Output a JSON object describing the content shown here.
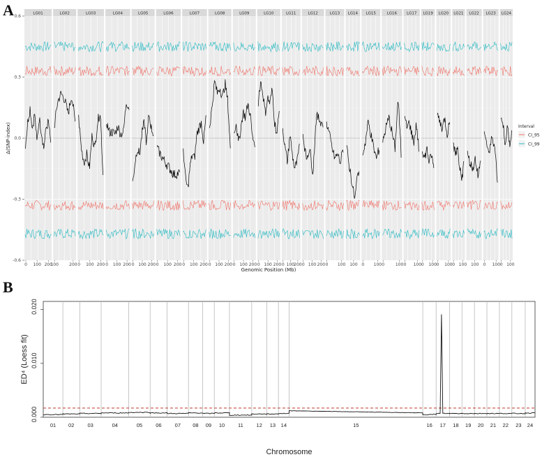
{
  "figure": {
    "panel_a_label": "A",
    "panel_b_label": "B"
  },
  "chart_data": [
    {
      "type": "line",
      "panel": "A",
      "title": "",
      "xlabel": "Genomic Position (Mb)",
      "ylabel": "Δ(SNP-index)",
      "ylim": [
        -0.6,
        0.6
      ],
      "yticks": [
        "0.6",
        "0.3",
        "0.0",
        "-0.3",
        "-0.6"
      ],
      "grid": true,
      "legend": {
        "title": "Interval",
        "placement": "right",
        "entries": [
          {
            "name": "CI_95",
            "color": "#f07167"
          },
          {
            "name": "CI_99",
            "color": "#26b9c2"
          }
        ]
      },
      "facets": [
        {
          "label": "LG01",
          "xticks": [
            "0",
            "100",
            "200"
          ],
          "delta": [
            -0.03,
            0.08,
            0.15,
            0.05,
            0.12,
            -0.02,
            0.1,
            0.03,
            -0.05,
            0.05,
            0.08,
            -0.02
          ]
        },
        {
          "label": "LG02",
          "xticks": [
            "100",
            "200"
          ],
          "delta": [
            0.05,
            0.18,
            0.22,
            0.19,
            0.12,
            0.21,
            0.08
          ]
        },
        {
          "label": "LG03",
          "xticks": [
            "0",
            "100",
            "200"
          ],
          "delta": [
            0.1,
            -0.05,
            -0.12,
            -0.08,
            -0.15,
            0.02,
            -0.05,
            0.08,
            0.13,
            -0.18
          ]
        },
        {
          "label": "LG04",
          "xticks": [
            "0",
            "100",
            "200"
          ],
          "delta": [
            0.08,
            0.03,
            0.03,
            0.02,
            0.06,
            0.02,
            0.03,
            0.18,
            0.15
          ]
        },
        {
          "label": "LG05",
          "xticks": [
            "0",
            "100",
            "200"
          ],
          "delta": [
            -0.22,
            -0.12,
            -0.05,
            -0.08,
            0.02,
            0.08,
            -0.03,
            0.12,
            0.05,
            0.02
          ]
        },
        {
          "label": "LG06",
          "xticks": [
            "0",
            "100",
            "200"
          ],
          "delta": [
            -0.05,
            -0.1,
            -0.14,
            -0.18,
            -0.17
          ]
        },
        {
          "label": "LG07",
          "xticks": [
            "0",
            "100",
            "200"
          ],
          "delta": [
            -0.05,
            -0.2,
            -0.25,
            -0.14,
            -0.08,
            -0.1,
            0.02,
            0.05,
            0.08,
            -0.02,
            0.1
          ]
        },
        {
          "label": "LG08",
          "xticks": [
            "0",
            "100",
            "200"
          ],
          "delta": [
            0.05,
            0.15,
            0.28,
            0.22,
            0.25,
            0.2,
            0.27,
            0.18,
            -0.05
          ]
        },
        {
          "label": "LG09",
          "xticks": [
            "0",
            "100",
            "200"
          ],
          "delta": [
            0.02,
            0.08,
            -0.03,
            0.05,
            0.13,
            0.1,
            0.17,
            0.12,
            0.0,
            -0.02
          ]
        },
        {
          "label": "LG10",
          "xticks": [
            "0",
            "100",
            "200"
          ],
          "delta": [
            0.18,
            0.28,
            0.22,
            0.12,
            0.2,
            0.17,
            0.24,
            0.08,
            0.02,
            0.13
          ]
        },
        {
          "label": "LG11",
          "xticks": [
            "0",
            "100",
            "200"
          ],
          "delta": [
            0.05,
            -0.05,
            -0.12,
            0.02,
            -0.08,
            -0.15,
            -0.12,
            -0.05
          ]
        },
        {
          "label": "LG12",
          "xticks": [
            "0",
            "100",
            "200"
          ],
          "delta": [
            0.02,
            -0.1,
            -0.05,
            -0.17,
            0.11,
            0.09,
            0.07
          ]
        },
        {
          "label": "LG13",
          "xticks": [
            "0",
            "100"
          ],
          "delta": [
            0.08,
            0.02,
            -0.05,
            -0.1,
            -0.08,
            -0.12,
            -0.05
          ]
        },
        {
          "label": "LG14",
          "xticks": [
            "100"
          ],
          "delta": [
            -0.05,
            -0.12,
            -0.18,
            -0.25,
            -0.3,
            -0.2,
            -0.15
          ]
        },
        {
          "label": "LG15",
          "xticks": [
            "0",
            "100"
          ],
          "delta": [
            -0.08,
            -0.02,
            0.08,
            0.02,
            -0.05,
            -0.1,
            -0.05
          ]
        },
        {
          "label": "LG16",
          "xticks": [
            "0",
            "100"
          ],
          "delta": [
            -0.02,
            0.05,
            0.1,
            0.03,
            -0.05,
            0.2,
            -0.08
          ]
        },
        {
          "label": "LG17",
          "xticks": [
            "0",
            "100"
          ],
          "delta": [
            0.1,
            0.05,
            0.08,
            0.02,
            -0.02,
            0.07,
            -0.05
          ]
        },
        {
          "label": "LG19",
          "xticks": [
            "0",
            "100"
          ],
          "delta": [
            -0.05,
            -0.1,
            -0.05,
            -0.12,
            -0.08,
            -0.15
          ]
        },
        {
          "label": "LG20",
          "xticks": [
            "0",
            "100"
          ],
          "delta": [
            0.12,
            0.08,
            0.05,
            0.1,
            0.02,
            0.08
          ]
        },
        {
          "label": "LG21",
          "xticks": [
            "0",
            "100"
          ],
          "delta": [
            -0.02,
            -0.08,
            -0.05,
            -0.15,
            -0.2,
            -0.12
          ]
        },
        {
          "label": "LG22",
          "xticks": [
            "100"
          ],
          "delta": [
            -0.08,
            -0.12,
            -0.15,
            -0.1,
            -0.18,
            -0.12
          ]
        },
        {
          "label": "LG23",
          "xticks": [
            "0",
            "100"
          ],
          "delta": [
            0.05,
            -0.03,
            -0.08,
            0.02,
            -0.05,
            -0.2
          ]
        },
        {
          "label": "LG24",
          "xticks": [
            "0",
            "100"
          ],
          "delta": [
            0.1,
            0.06,
            -0.02,
            0.05,
            -0.03,
            0.02
          ]
        }
      ],
      "threshold_levels": {
        "CI_95": [
          0.33,
          -0.33
        ],
        "CI_99": [
          0.45,
          -0.47
        ]
      }
    },
    {
      "type": "line",
      "panel": "B",
      "title": "",
      "xlabel": "Chromosome",
      "ylabel": "ED⁴ (Loess fit)",
      "ylim": [
        0,
        0.0215
      ],
      "yticks": [
        "0.000",
        "0.010",
        "0.020"
      ],
      "grid": false,
      "threshold": {
        "value": 0.0017,
        "color": "#c0392b",
        "style": "dashed"
      },
      "chromosomes": [
        "01",
        "02",
        "03",
        "04",
        "05",
        "06",
        "07",
        "08",
        "09",
        "10",
        "11",
        "12",
        "13",
        "14",
        "15",
        "16",
        "17",
        "18",
        "19",
        "20",
        "21",
        "22",
        "23",
        "24"
      ],
      "baseline": [
        0.0005,
        0.0006,
        0.0007,
        0.0008,
        0.0009,
        0.0008,
        0.0007,
        0.0008,
        0.0007,
        0.0008,
        0.0004,
        0.0006,
        0.0006,
        0.0007,
        0.0012,
        0.0005,
        0.0007,
        0.0007,
        0.0007,
        0.0007,
        0.0007,
        0.0007,
        0.0007,
        0.0008
      ],
      "peak": {
        "chromosome": "17",
        "value": 0.0191
      }
    }
  ]
}
